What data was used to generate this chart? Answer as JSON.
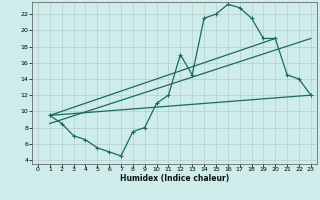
{
  "xlabel": "Humidex (Indice chaleur)",
  "background_color": "#ceecea",
  "grid_color": "#b0c8c6",
  "line_color": "#1a6b5a",
  "xlim": [
    -0.5,
    23.5
  ],
  "ylim": [
    3.5,
    23.5
  ],
  "xticks": [
    0,
    1,
    2,
    3,
    4,
    5,
    6,
    7,
    8,
    9,
    10,
    11,
    12,
    13,
    14,
    15,
    16,
    17,
    18,
    19,
    20,
    21,
    22,
    23
  ],
  "yticks": [
    4,
    6,
    8,
    10,
    12,
    14,
    16,
    18,
    20,
    22
  ],
  "line1_x": [
    1,
    2,
    3,
    4,
    5,
    6,
    7,
    8,
    9,
    10,
    11,
    12,
    13,
    14,
    15,
    16,
    17,
    18,
    19,
    20,
    21,
    22,
    23
  ],
  "line1_y": [
    9.5,
    8.5,
    7.0,
    6.5,
    5.5,
    5.0,
    4.5,
    7.5,
    8.0,
    11.0,
    12.0,
    17.0,
    14.5,
    21.5,
    22.0,
    23.2,
    22.8,
    21.5,
    19.0,
    19.0,
    14.5,
    14.0,
    12.0
  ],
  "line2_x": [
    1,
    23
  ],
  "line2_y": [
    9.5,
    12.0
  ],
  "line3_x": [
    1,
    20
  ],
  "line3_y": [
    9.5,
    19.0
  ],
  "line4_x": [
    1,
    23
  ],
  "line4_y": [
    8.5,
    19.0
  ]
}
